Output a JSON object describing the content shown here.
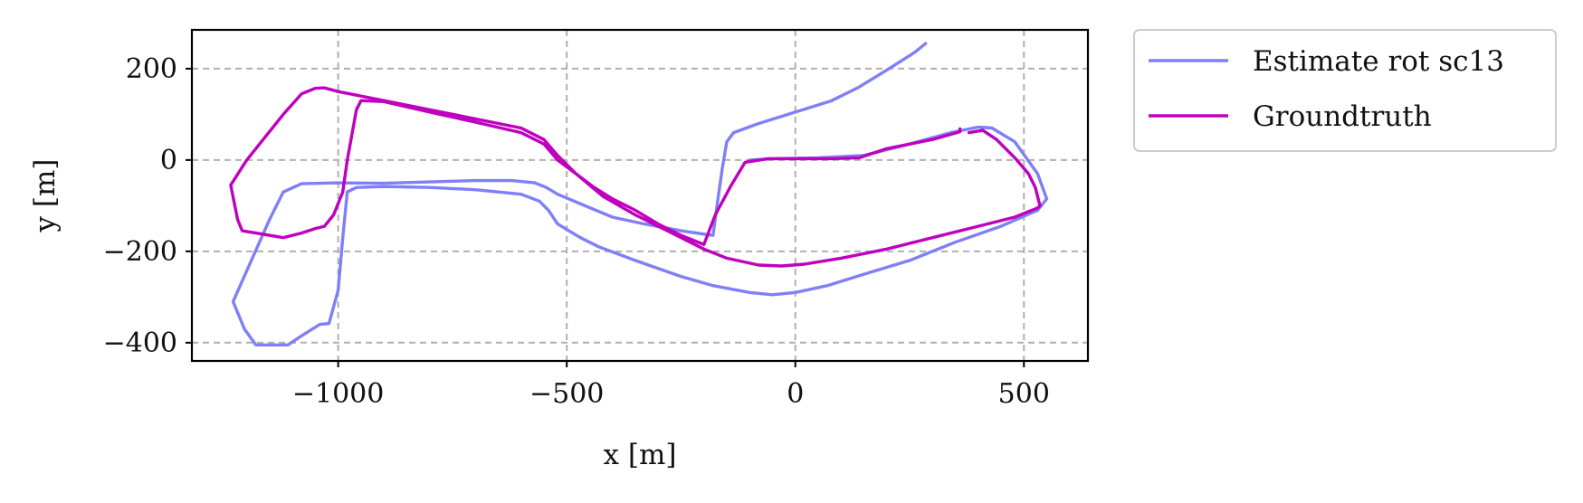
{
  "chart_data": {
    "type": "line",
    "title": "",
    "xlabel": "x [m]",
    "ylabel": "y [m]",
    "xlim": [
      -1320,
      640
    ],
    "ylim": [
      -440,
      285
    ],
    "xticks": [
      -1000,
      -500,
      0,
      500
    ],
    "xtick_labels": [
      "−1000",
      "−500",
      "0",
      "500"
    ],
    "yticks": [
      200,
      0,
      -200,
      -400
    ],
    "ytick_labels": [
      "200",
      "0",
      "−200",
      "−400"
    ],
    "grid": true,
    "legend_position": "outside-right-top",
    "series": [
      {
        "name": "Estimate rot sc13",
        "color": "#7f7ff7",
        "points": [
          [
            285,
            255
          ],
          [
            260,
            235
          ],
          [
            200,
            197
          ],
          [
            140,
            160
          ],
          [
            80,
            130
          ],
          [
            0,
            105
          ],
          [
            -80,
            80
          ],
          [
            -135,
            60
          ],
          [
            -150,
            40
          ],
          [
            -160,
            -20
          ],
          [
            -170,
            -90
          ],
          [
            -180,
            -165
          ],
          [
            -250,
            -155
          ],
          [
            -330,
            -140
          ],
          [
            -400,
            -125
          ],
          [
            -460,
            -100
          ],
          [
            -520,
            -75
          ],
          [
            -545,
            -60
          ],
          [
            -570,
            -50
          ],
          [
            -620,
            -45
          ],
          [
            -700,
            -45
          ],
          [
            -800,
            -48
          ],
          [
            -900,
            -51
          ],
          [
            -1000,
            -50
          ],
          [
            -1080,
            -52
          ],
          [
            -1120,
            -70
          ],
          [
            -1150,
            -130
          ],
          [
            -1190,
            -220
          ],
          [
            -1230,
            -310
          ],
          [
            -1205,
            -370
          ],
          [
            -1180,
            -405
          ],
          [
            -1110,
            -405
          ],
          [
            -1080,
            -385
          ],
          [
            -1040,
            -360
          ],
          [
            -1020,
            -358
          ],
          [
            -1000,
            -285
          ],
          [
            -990,
            -170
          ],
          [
            -980,
            -70
          ],
          [
            -960,
            -60
          ],
          [
            -900,
            -58
          ],
          [
            -800,
            -60
          ],
          [
            -700,
            -65
          ],
          [
            -600,
            -75
          ],
          [
            -560,
            -90
          ],
          [
            -540,
            -110
          ],
          [
            -520,
            -140
          ],
          [
            -470,
            -170
          ],
          [
            -430,
            -190
          ],
          [
            -350,
            -220
          ],
          [
            -250,
            -255
          ],
          [
            -180,
            -275
          ],
          [
            -100,
            -290
          ],
          [
            -50,
            -295
          ],
          [
            0,
            -290
          ],
          [
            70,
            -275
          ],
          [
            150,
            -250
          ],
          [
            250,
            -220
          ],
          [
            350,
            -180
          ],
          [
            450,
            -145
          ],
          [
            530,
            -110
          ],
          [
            550,
            -85
          ],
          [
            530,
            -30
          ],
          [
            480,
            40
          ],
          [
            430,
            70
          ],
          [
            400,
            72
          ],
          [
            340,
            60
          ],
          [
            250,
            35
          ],
          [
            150,
            10
          ],
          [
            50,
            5
          ],
          [
            -50,
            3
          ],
          [
            -100,
            0
          ]
        ]
      },
      {
        "name": "Groundtruth",
        "color": "#bf00bf",
        "points": [
          [
            360,
            68
          ],
          [
            360,
            62
          ],
          [
            300,
            45
          ],
          [
            200,
            25
          ],
          [
            140,
            5
          ],
          [
            80,
            3
          ],
          [
            0,
            3
          ],
          [
            -60,
            3
          ],
          [
            -110,
            -5
          ],
          [
            -140,
            -55
          ],
          [
            -175,
            -120
          ],
          [
            -200,
            -185
          ],
          [
            -250,
            -165
          ],
          [
            -300,
            -140
          ],
          [
            -350,
            -110
          ],
          [
            -400,
            -85
          ],
          [
            -440,
            -60
          ],
          [
            -480,
            -30
          ],
          [
            -520,
            0
          ],
          [
            -550,
            35
          ],
          [
            -600,
            60
          ],
          [
            -700,
            83
          ],
          [
            -800,
            105
          ],
          [
            -900,
            128
          ],
          [
            -950,
            130
          ],
          [
            -960,
            110
          ],
          [
            -980,
            0
          ],
          [
            -990,
            -70
          ],
          [
            -1010,
            -120
          ],
          [
            -1030,
            -145
          ],
          [
            -1050,
            -150
          ],
          [
            -1080,
            -160
          ],
          [
            -1120,
            -170
          ],
          [
            -1180,
            -160
          ],
          [
            -1210,
            -155
          ],
          [
            -1220,
            -130
          ],
          [
            -1235,
            -55
          ],
          [
            -1200,
            0
          ],
          [
            -1120,
            100
          ],
          [
            -1080,
            145
          ],
          [
            -1050,
            157
          ],
          [
            -1030,
            158
          ],
          [
            -1000,
            150
          ],
          [
            -900,
            130
          ],
          [
            -800,
            110
          ],
          [
            -700,
            90
          ],
          [
            -600,
            70
          ],
          [
            -550,
            45
          ],
          [
            -520,
            10
          ],
          [
            -480,
            -30
          ],
          [
            -420,
            -80
          ],
          [
            -350,
            -120
          ],
          [
            -270,
            -160
          ],
          [
            -200,
            -195
          ],
          [
            -150,
            -215
          ],
          [
            -80,
            -230
          ],
          [
            -30,
            -232
          ],
          [
            20,
            -228
          ],
          [
            100,
            -215
          ],
          [
            200,
            -195
          ],
          [
            300,
            -170
          ],
          [
            400,
            -145
          ],
          [
            480,
            -125
          ],
          [
            530,
            -105
          ],
          [
            535,
            -100
          ],
          [
            525,
            -60
          ],
          [
            510,
            -30
          ],
          [
            480,
            5
          ],
          [
            440,
            45
          ],
          [
            410,
            65
          ],
          [
            380,
            60
          ]
        ]
      }
    ]
  }
}
